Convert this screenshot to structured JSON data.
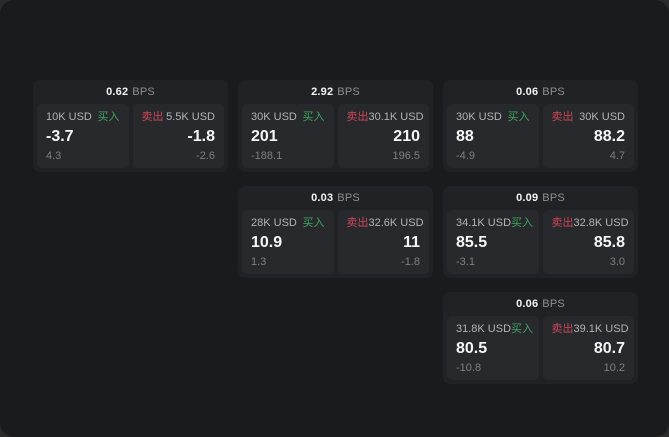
{
  "app": {
    "background_color": "#1a1b1d",
    "card_color": "#212225",
    "panel_color": "#28292c",
    "accent_buy": "#3fa65f",
    "accent_sell": "#cb4759"
  },
  "labels": {
    "buy": "买入",
    "sell": "卖出",
    "bps": "BPS"
  },
  "cards": [
    {
      "bps": "0.62",
      "buy": {
        "size": "10K USD",
        "price": "-3.7",
        "delta": "4.3"
      },
      "sell": {
        "size": "5.5K USD",
        "price": "-1.8",
        "delta": "-2.6"
      }
    },
    {
      "bps": "2.92",
      "buy": {
        "size": "30K USD",
        "price": "201",
        "delta": "-188.1"
      },
      "sell": {
        "size": "30.1K USD",
        "price": "210",
        "delta": "196.5"
      }
    },
    {
      "bps": "0.06",
      "buy": {
        "size": "30K USD",
        "price": "88",
        "delta": "-4.9"
      },
      "sell": {
        "size": "30K USD",
        "price": "88.2",
        "delta": "4.7"
      }
    },
    {
      "bps": "0.03",
      "buy": {
        "size": "28K USD",
        "price": "10.9",
        "delta": "1.3"
      },
      "sell": {
        "size": "32.6K USD",
        "price": "11",
        "delta": "-1.8"
      }
    },
    {
      "bps": "0.09",
      "buy": {
        "size": "34.1K USD",
        "price": "85.5",
        "delta": "-3.1"
      },
      "sell": {
        "size": "32.8K USD",
        "price": "85.8",
        "delta": "3.0"
      }
    },
    {
      "bps": "0.06",
      "buy": {
        "size": "31.8K USD",
        "price": "80.5",
        "delta": "-10.8"
      },
      "sell": {
        "size": "39.1K USD",
        "price": "80.7",
        "delta": "10.2"
      }
    }
  ]
}
